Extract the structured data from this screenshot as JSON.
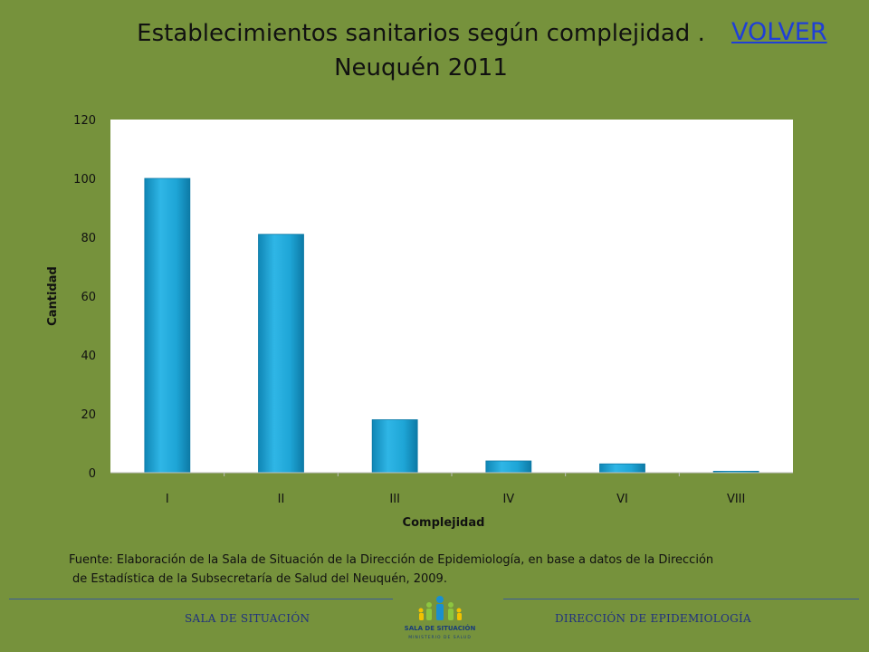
{
  "header": {
    "title_line1": "Establecimientos sanitarios según complejidad .",
    "title_line2": "Neuquén 2011",
    "volver_label": "VOLVER"
  },
  "chart_data": {
    "type": "bar",
    "categories": [
      "I",
      "II",
      "III",
      "IV",
      "VI",
      "VIII"
    ],
    "values": [
      100,
      81,
      18,
      4,
      3,
      0.5
    ],
    "xlabel": "Complejidad",
    "ylabel": "Cantidad",
    "ylim": [
      0,
      120
    ],
    "yticks": [
      0,
      20,
      40,
      60,
      80,
      100,
      120
    ],
    "bar_color": "#1ea5d6",
    "plot_background": "#ffffff",
    "grid": false,
    "legend": "none"
  },
  "source": {
    "line1": "Fuente: Elaboración de la Sala de Situación de la Dirección de Epidemiología, en base a datos de la Dirección",
    "line2": "de Estadística de la Subsecretaría  de Salud del Neuquén, 2009."
  },
  "footer": {
    "left_text": "SALA DE SITUACIÓN",
    "right_text": "DIRECCIÓN DE EPIDEMIOLOGÍA",
    "logo_icon": "sala-de-situacion-logo",
    "logo_title": "SALA DE SITUACIÓN",
    "logo_subtitle": "MINISTERIO DE SALUD"
  },
  "colors": {
    "background": "#76923c",
    "link": "#1f3fd6",
    "footer_text": "#1f3080"
  }
}
